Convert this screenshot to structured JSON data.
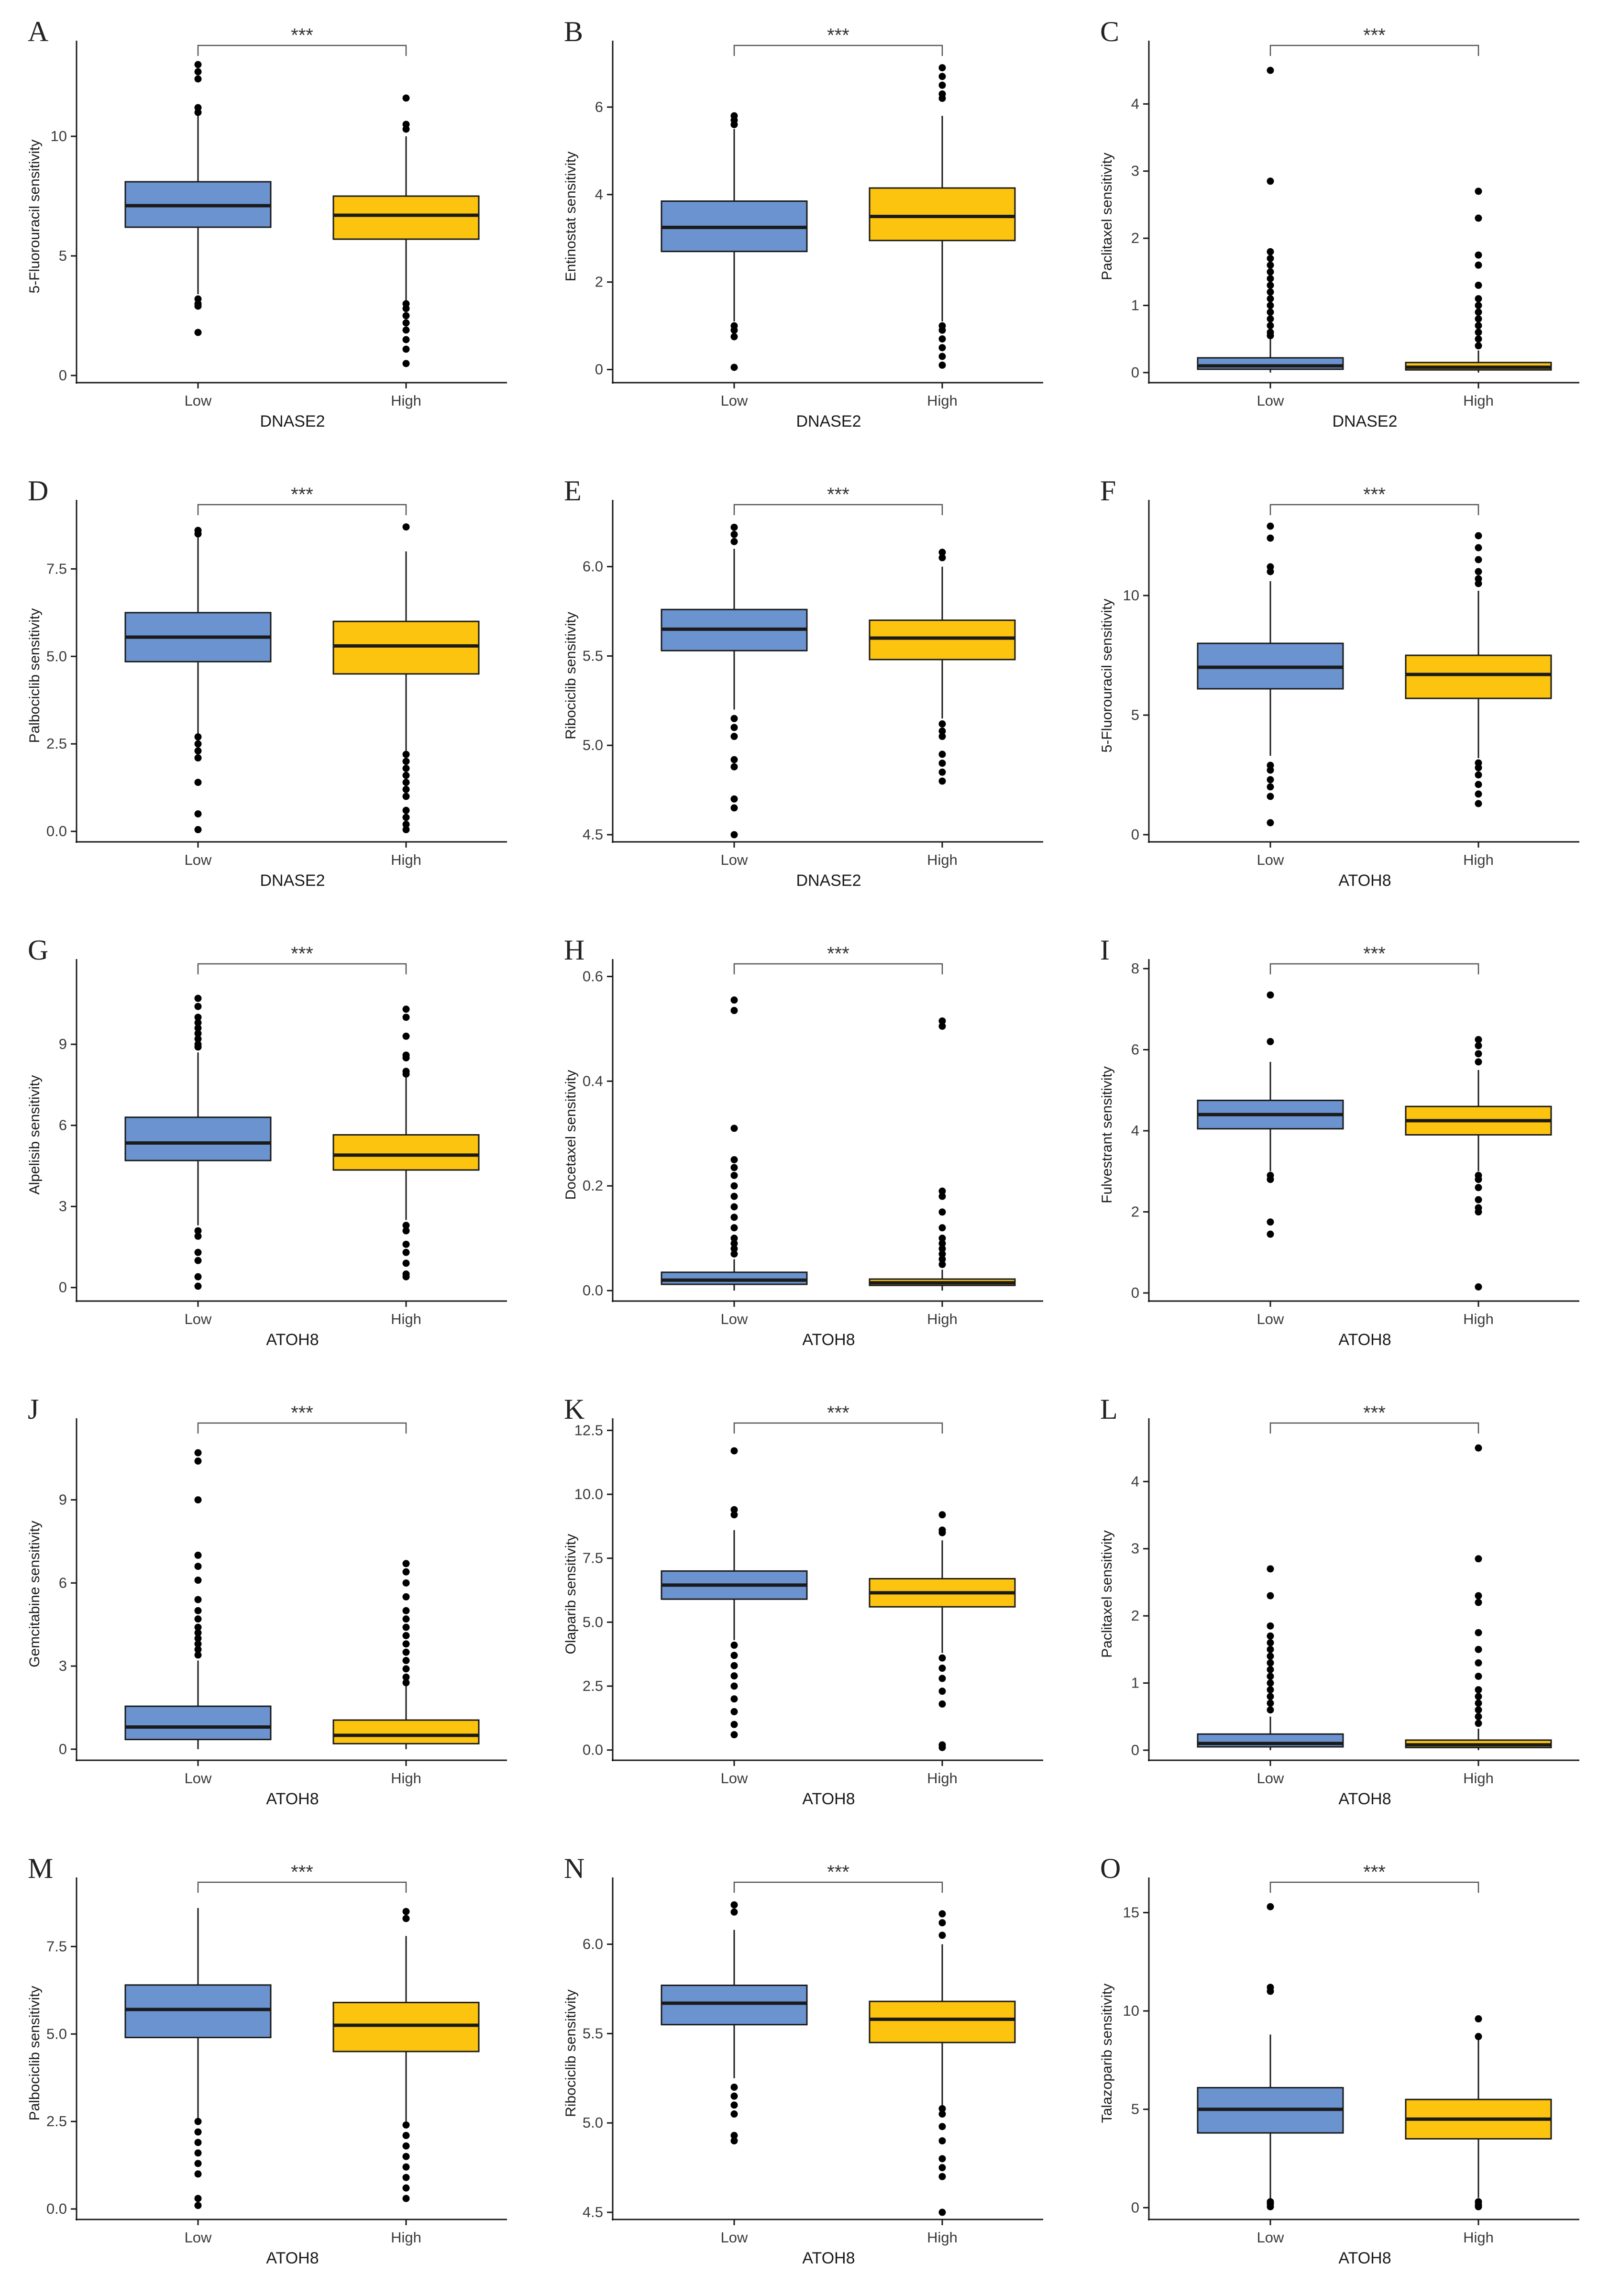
{
  "colors": {
    "low": "#6b93cf",
    "high": "#fcc40f",
    "axis": "#1a1a1a",
    "bracket": "#555555"
  },
  "chart_data": [
    {
      "letter": "A",
      "type": "box",
      "title": "",
      "xlabel": "DNASE2",
      "ylabel": "5-Fluorouracil sensitivity",
      "ylim": [
        -0.3,
        13.6
      ],
      "yticks": [
        0,
        5,
        10
      ],
      "ytick_labels": [
        "0",
        "5",
        "10"
      ],
      "categories": [
        "Low",
        "High"
      ],
      "significance": "***",
      "boxes": [
        {
          "q1": 6.2,
          "median": 7.1,
          "q3": 8.1,
          "wlo": 3.4,
          "whi": 10.9,
          "outliers": [
            13.0,
            12.7,
            12.4,
            11.2,
            11.0,
            3.2,
            3.0,
            2.9,
            1.8
          ]
        },
        {
          "q1": 5.7,
          "median": 6.7,
          "q3": 7.5,
          "wlo": 3.1,
          "whi": 10.0,
          "outliers": [
            11.6,
            10.5,
            10.3,
            3.0,
            2.8,
            2.5,
            2.2,
            1.9,
            1.5,
            1.1,
            0.5
          ]
        }
      ]
    },
    {
      "letter": "B",
      "type": "box",
      "title": "",
      "xlabel": "DNASE2",
      "ylabel": "Entinostat sensitivity",
      "ylim": [
        -0.3,
        7.3
      ],
      "yticks": [
        0,
        2,
        4,
        6
      ],
      "ytick_labels": [
        "0",
        "2",
        "4",
        "6"
      ],
      "categories": [
        "Low",
        "High"
      ],
      "significance": "***",
      "boxes": [
        {
          "q1": 2.7,
          "median": 3.25,
          "q3": 3.85,
          "wlo": 1.1,
          "whi": 5.5,
          "outliers": [
            5.8,
            5.7,
            5.6,
            1.0,
            0.9,
            0.75,
            0.05
          ]
        },
        {
          "q1": 2.95,
          "median": 3.5,
          "q3": 4.15,
          "wlo": 1.1,
          "whi": 5.8,
          "outliers": [
            6.9,
            6.7,
            6.5,
            6.3,
            6.2,
            1.0,
            0.9,
            0.7,
            0.5,
            0.3,
            0.1
          ]
        }
      ]
    },
    {
      "letter": "C",
      "type": "box",
      "title": "",
      "xlabel": "DNASE2",
      "ylabel": "Paclitaxel sensitivity",
      "ylim": [
        -0.15,
        4.8
      ],
      "yticks": [
        0,
        1,
        2,
        3,
        4
      ],
      "ytick_labels": [
        "0",
        "1",
        "2",
        "3",
        "4"
      ],
      "categories": [
        "Low",
        "High"
      ],
      "significance": "***",
      "boxes": [
        {
          "q1": 0.05,
          "median": 0.1,
          "q3": 0.22,
          "wlo": 0.0,
          "whi": 0.5,
          "outliers": [
            4.5,
            2.85,
            1.8,
            1.7,
            1.6,
            1.5,
            1.4,
            1.3,
            1.2,
            1.1,
            1.0,
            0.9,
            0.8,
            0.7,
            0.6,
            0.55
          ]
        },
        {
          "q1": 0.04,
          "median": 0.08,
          "q3": 0.15,
          "wlo": 0.0,
          "whi": 0.33,
          "outliers": [
            2.7,
            2.3,
            1.75,
            1.6,
            1.3,
            1.1,
            1.0,
            0.9,
            0.8,
            0.7,
            0.6,
            0.5,
            0.4
          ]
        }
      ]
    },
    {
      "letter": "D",
      "type": "box",
      "title": "",
      "xlabel": "DNASE2",
      "ylabel": "Palbociclib sensitivity",
      "ylim": [
        -0.3,
        9.2
      ],
      "yticks": [
        0,
        2.5,
        5,
        7.5
      ],
      "ytick_labels": [
        "0.0",
        "2.5",
        "5.0",
        "7.5"
      ],
      "categories": [
        "Low",
        "High"
      ],
      "significance": "***",
      "boxes": [
        {
          "q1": 4.85,
          "median": 5.55,
          "q3": 6.25,
          "wlo": 2.8,
          "whi": 8.4,
          "outliers": [
            8.6,
            8.5,
            2.7,
            2.5,
            2.3,
            2.1,
            1.4,
            0.5,
            0.05
          ]
        },
        {
          "q1": 4.5,
          "median": 5.3,
          "q3": 6.0,
          "wlo": 2.3,
          "whi": 8.0,
          "outliers": [
            8.7,
            2.2,
            2.0,
            1.8,
            1.6,
            1.4,
            1.2,
            1.0,
            0.6,
            0.4,
            0.2,
            0.05
          ]
        }
      ]
    },
    {
      "letter": "E",
      "type": "box",
      "title": "",
      "xlabel": "DNASE2",
      "ylabel": "Ribociclib sensitivity",
      "ylim": [
        4.46,
        6.32
      ],
      "yticks": [
        4.5,
        5.0,
        5.5,
        6.0
      ],
      "ytick_labels": [
        "4.5",
        "5.0",
        "5.5",
        "6.0"
      ],
      "categories": [
        "Low",
        "High"
      ],
      "significance": "***",
      "boxes": [
        {
          "q1": 5.53,
          "median": 5.65,
          "q3": 5.76,
          "wlo": 5.2,
          "whi": 6.1,
          "outliers": [
            6.22,
            6.18,
            6.14,
            5.15,
            5.1,
            5.05,
            4.92,
            4.88,
            4.7,
            4.65,
            4.5
          ]
        },
        {
          "q1": 5.48,
          "median": 5.6,
          "q3": 5.7,
          "wlo": 5.15,
          "whi": 6.0,
          "outliers": [
            6.08,
            6.05,
            5.12,
            5.08,
            5.05,
            4.95,
            4.9,
            4.85,
            4.8
          ]
        }
      ]
    },
    {
      "letter": "F",
      "type": "box",
      "title": "",
      "xlabel": "ATOH8",
      "ylabel": "5-Fluorouracil sensitivity",
      "ylim": [
        -0.3,
        13.6
      ],
      "yticks": [
        0,
        5,
        10
      ],
      "ytick_labels": [
        "0",
        "5",
        "10"
      ],
      "categories": [
        "Low",
        "High"
      ],
      "significance": "***",
      "boxes": [
        {
          "q1": 6.1,
          "median": 7.0,
          "q3": 8.0,
          "wlo": 3.3,
          "whi": 10.6,
          "outliers": [
            12.9,
            12.4,
            11.2,
            11.0,
            2.9,
            2.7,
            2.3,
            2.0,
            1.6,
            0.5
          ]
        },
        {
          "q1": 5.7,
          "median": 6.7,
          "q3": 7.5,
          "wlo": 3.2,
          "whi": 10.2,
          "outliers": [
            12.5,
            12.0,
            11.5,
            11.0,
            10.7,
            10.5,
            3.0,
            2.8,
            2.5,
            2.1,
            1.7,
            1.3
          ]
        }
      ]
    },
    {
      "letter": "G",
      "type": "box",
      "title": "",
      "xlabel": "ATOH8",
      "ylabel": "Alpelisib sensitivity",
      "ylim": [
        -0.5,
        11.8
      ],
      "yticks": [
        0,
        3,
        6,
        9
      ],
      "ytick_labels": [
        "0",
        "3",
        "6",
        "9"
      ],
      "categories": [
        "Low",
        "High"
      ],
      "significance": "***",
      "boxes": [
        {
          "q1": 4.7,
          "median": 5.35,
          "q3": 6.3,
          "wlo": 2.3,
          "whi": 8.7,
          "outliers": [
            10.7,
            10.4,
            10.0,
            9.8,
            9.6,
            9.4,
            9.2,
            9.0,
            8.9,
            2.1,
            1.9,
            1.3,
            1.0,
            0.4,
            0.05
          ]
        },
        {
          "q1": 4.35,
          "median": 4.9,
          "q3": 5.65,
          "wlo": 2.5,
          "whi": 7.8,
          "outliers": [
            10.3,
            10.0,
            9.3,
            8.6,
            8.5,
            8.0,
            7.9,
            2.3,
            2.1,
            1.6,
            1.3,
            0.9,
            0.5,
            0.4
          ]
        }
      ]
    },
    {
      "letter": "H",
      "type": "box",
      "title": "",
      "xlabel": "ATOH8",
      "ylabel": "Docetaxel sensitivity",
      "ylim": [
        -0.02,
        0.615
      ],
      "yticks": [
        0.0,
        0.2,
        0.4,
        0.6
      ],
      "ytick_labels": [
        "0.0",
        "0.2",
        "0.4",
        "0.6"
      ],
      "categories": [
        "Low",
        "High"
      ],
      "significance": "***",
      "boxes": [
        {
          "q1": 0.012,
          "median": 0.02,
          "q3": 0.035,
          "wlo": 0.0,
          "whi": 0.06,
          "outliers": [
            0.555,
            0.535,
            0.31,
            0.25,
            0.235,
            0.22,
            0.2,
            0.18,
            0.16,
            0.14,
            0.12,
            0.1,
            0.09,
            0.08,
            0.07
          ]
        },
        {
          "q1": 0.01,
          "median": 0.015,
          "q3": 0.022,
          "wlo": 0.0,
          "whi": 0.04,
          "outliers": [
            0.515,
            0.505,
            0.19,
            0.18,
            0.15,
            0.12,
            0.1,
            0.09,
            0.08,
            0.07,
            0.06,
            0.05
          ]
        }
      ]
    },
    {
      "letter": "I",
      "type": "box",
      "title": "",
      "xlabel": "ATOH8",
      "ylabel": "Fulvestrant sensitivity",
      "ylim": [
        -0.2,
        8.0
      ],
      "yticks": [
        0,
        2,
        4,
        6,
        8
      ],
      "ytick_labels": [
        "0",
        "2",
        "4",
        "6",
        "8"
      ],
      "categories": [
        "Low",
        "High"
      ],
      "significance": "***",
      "boxes": [
        {
          "q1": 4.05,
          "median": 4.4,
          "q3": 4.75,
          "wlo": 3.0,
          "whi": 5.7,
          "outliers": [
            7.35,
            6.2,
            2.9,
            2.8,
            1.75,
            1.45
          ]
        },
        {
          "q1": 3.9,
          "median": 4.25,
          "q3": 4.6,
          "wlo": 3.0,
          "whi": 5.5,
          "outliers": [
            6.25,
            6.1,
            5.9,
            5.7,
            2.9,
            2.8,
            2.6,
            2.3,
            2.1,
            2.0,
            0.15
          ]
        }
      ]
    },
    {
      "letter": "J",
      "type": "box",
      "title": "",
      "xlabel": "ATOH8",
      "ylabel": "Gemcitabine sensitivity",
      "ylim": [
        -0.4,
        11.6
      ],
      "yticks": [
        0,
        3,
        6,
        9
      ],
      "ytick_labels": [
        "0",
        "3",
        "6",
        "9"
      ],
      "categories": [
        "Low",
        "High"
      ],
      "significance": "***",
      "boxes": [
        {
          "q1": 0.35,
          "median": 0.8,
          "q3": 1.55,
          "wlo": 0.0,
          "whi": 3.2,
          "outliers": [
            10.7,
            10.4,
            9.0,
            7.0,
            6.6,
            6.1,
            5.4,
            5.0,
            4.7,
            4.4,
            4.2,
            4.0,
            3.8,
            3.6,
            3.4
          ]
        },
        {
          "q1": 0.2,
          "median": 0.5,
          "q3": 1.05,
          "wlo": 0.0,
          "whi": 2.3,
          "outliers": [
            6.7,
            6.4,
            6.0,
            5.5,
            5.0,
            4.7,
            4.4,
            4.1,
            3.8,
            3.5,
            3.2,
            2.9,
            2.6,
            2.4
          ]
        }
      ]
    },
    {
      "letter": "K",
      "type": "box",
      "title": "",
      "xlabel": "ATOH8",
      "ylabel": "Olaparib sensitivity",
      "ylim": [
        -0.4,
        12.6
      ],
      "yticks": [
        0,
        2.5,
        5,
        7.5,
        10,
        12.5
      ],
      "ytick_labels": [
        "0.0",
        "2.5",
        "5.0",
        "7.5",
        "10.0",
        "12.5"
      ],
      "categories": [
        "Low",
        "High"
      ],
      "significance": "***",
      "boxes": [
        {
          "q1": 5.9,
          "median": 6.45,
          "q3": 7.0,
          "wlo": 4.3,
          "whi": 8.6,
          "outliers": [
            11.7,
            9.4,
            9.2,
            4.1,
            3.7,
            3.3,
            2.9,
            2.5,
            2.0,
            1.5,
            1.0,
            0.6
          ]
        },
        {
          "q1": 5.6,
          "median": 6.15,
          "q3": 6.7,
          "wlo": 3.8,
          "whi": 8.2,
          "outliers": [
            9.2,
            8.6,
            8.5,
            3.6,
            3.2,
            2.8,
            2.3,
            1.8,
            0.2,
            0.1
          ]
        }
      ]
    },
    {
      "letter": "L",
      "type": "box",
      "title": "",
      "xlabel": "ATOH8",
      "ylabel": "Paclitaxel sensitivity",
      "ylim": [
        -0.15,
        4.8
      ],
      "yticks": [
        0,
        1,
        2,
        3,
        4
      ],
      "ytick_labels": [
        "0",
        "1",
        "2",
        "3",
        "4"
      ],
      "categories": [
        "Low",
        "High"
      ],
      "significance": "***",
      "boxes": [
        {
          "q1": 0.05,
          "median": 0.1,
          "q3": 0.24,
          "wlo": 0.0,
          "whi": 0.5,
          "outliers": [
            2.7,
            2.3,
            1.85,
            1.7,
            1.6,
            1.5,
            1.4,
            1.3,
            1.2,
            1.1,
            1.0,
            0.9,
            0.8,
            0.7,
            0.6
          ]
        },
        {
          "q1": 0.04,
          "median": 0.08,
          "q3": 0.15,
          "wlo": 0.0,
          "whi": 0.32,
          "outliers": [
            4.5,
            2.85,
            2.3,
            2.2,
            1.75,
            1.5,
            1.3,
            1.1,
            0.9,
            0.8,
            0.7,
            0.6,
            0.5,
            0.4
          ]
        }
      ]
    },
    {
      "letter": "M",
      "type": "box",
      "title": "",
      "xlabel": "ATOH8",
      "ylabel": "Palbociclib sensitivity",
      "ylim": [
        -0.3,
        9.2
      ],
      "yticks": [
        0,
        2.5,
        5,
        7.5
      ],
      "ytick_labels": [
        "0.0",
        "2.5",
        "5.0",
        "7.5"
      ],
      "categories": [
        "Low",
        "High"
      ],
      "significance": "***",
      "boxes": [
        {
          "q1": 4.9,
          "median": 5.7,
          "q3": 6.4,
          "wlo": 2.6,
          "whi": 8.6,
          "outliers": [
            2.5,
            2.2,
            1.9,
            1.6,
            1.3,
            1.0,
            0.3,
            0.1
          ]
        },
        {
          "q1": 4.5,
          "median": 5.25,
          "q3": 5.9,
          "wlo": 2.5,
          "whi": 7.8,
          "outliers": [
            8.5,
            8.3,
            2.4,
            2.1,
            1.8,
            1.5,
            1.2,
            0.9,
            0.6,
            0.3
          ]
        }
      ]
    },
    {
      "letter": "N",
      "type": "box",
      "title": "",
      "xlabel": "ATOH8",
      "ylabel": "Ribociclib sensitivity",
      "ylim": [
        4.46,
        6.32
      ],
      "yticks": [
        4.5,
        5.0,
        5.5,
        6.0
      ],
      "ytick_labels": [
        "4.5",
        "5.0",
        "5.5",
        "6.0"
      ],
      "categories": [
        "Low",
        "High"
      ],
      "significance": "***",
      "boxes": [
        {
          "q1": 5.55,
          "median": 5.67,
          "q3": 5.77,
          "wlo": 5.25,
          "whi": 6.08,
          "outliers": [
            6.22,
            6.18,
            5.2,
            5.15,
            5.1,
            5.05,
            4.93,
            4.9
          ]
        },
        {
          "q1": 5.45,
          "median": 5.58,
          "q3": 5.68,
          "wlo": 5.1,
          "whi": 6.0,
          "outliers": [
            6.17,
            6.12,
            6.05,
            5.08,
            5.05,
            4.98,
            4.9,
            4.8,
            4.75,
            4.7,
            4.5
          ]
        }
      ]
    },
    {
      "letter": "O",
      "type": "box",
      "title": "",
      "xlabel": "ATOH8",
      "ylabel": "Talazoparib sensitivity",
      "ylim": [
        -0.6,
        16.3
      ],
      "yticks": [
        0,
        5,
        10,
        15
      ],
      "ytick_labels": [
        "0",
        "5",
        "10",
        "15"
      ],
      "categories": [
        "Low",
        "High"
      ],
      "significance": "***",
      "boxes": [
        {
          "q1": 3.8,
          "median": 5.0,
          "q3": 6.1,
          "wlo": 0.4,
          "whi": 8.8,
          "outliers": [
            15.3,
            11.2,
            11.0,
            0.3,
            0.2,
            0.05
          ]
        },
        {
          "q1": 3.5,
          "median": 4.5,
          "q3": 5.5,
          "wlo": 0.5,
          "whi": 8.6,
          "outliers": [
            9.6,
            8.7,
            0.3,
            0.15,
            0.05
          ]
        }
      ]
    }
  ]
}
